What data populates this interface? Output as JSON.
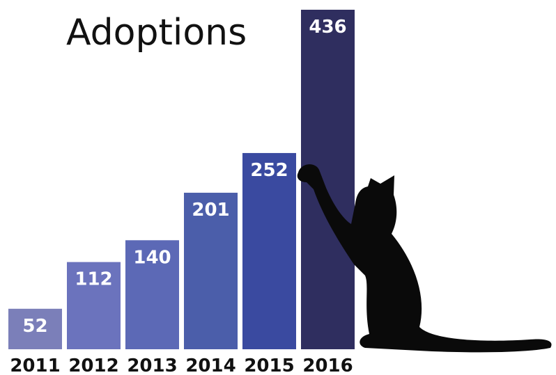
{
  "chart_data": {
    "type": "bar",
    "title": "Adoptions",
    "categories": [
      "2011",
      "2012",
      "2013",
      "2014",
      "2015",
      "2016"
    ],
    "values": [
      52,
      112,
      140,
      201,
      252,
      436
    ],
    "colors": [
      "#7b7fb9",
      "#6b73bd",
      "#5c69b6",
      "#4b5eaa",
      "#3a4aa0",
      "#2f2e5f"
    ]
  }
}
